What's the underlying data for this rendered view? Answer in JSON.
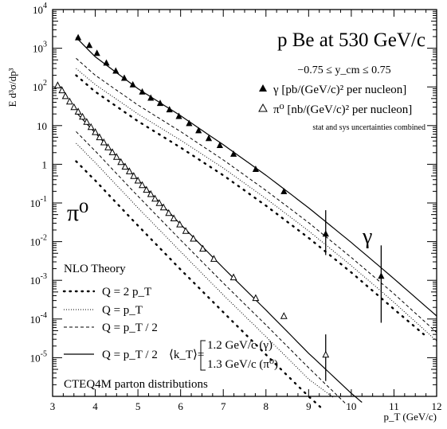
{
  "chart_data": {
    "type": "scatter",
    "title": "p Be at 530 GeV/c",
    "ylabel": "E d³σ/dp³",
    "xlabel": "p_T (GeV/c)",
    "y_scale": "log",
    "xlim": [
      3,
      12
    ],
    "ylim": [
      1e-06,
      10000.0
    ],
    "x_ticks": [
      "3",
      "4",
      "5",
      "6",
      "7",
      "8",
      "9",
      "10",
      "11",
      "12"
    ],
    "y_ticks": [
      "10^4",
      "10^3",
      "10^2",
      "10",
      "1",
      "10^-1",
      "10^-2",
      "10^-3",
      "10^-4",
      "10^-5"
    ],
    "annotations": {
      "rapidity": "−0.75 ≤ y_cm ≤ 0.75",
      "gamma_legend": "γ  [pb/(GeV/c)² per nucleon]",
      "pi0_legend": "π⁰ [nb/(GeV/c)² per nucleon]",
      "uncertainties": "stat and sys uncertainties combined",
      "pi0_label": "π⁰",
      "gamma_label": "γ"
    },
    "theory_legend": {
      "header": "NLO Theory",
      "q2pt": "Q = 2 p_T",
      "qpt": "Q = p_T",
      "qhalf": "Q = p_T / 2",
      "qhalf_kt": "Q = p_T / 2",
      "kt_label": "⟨k_T⟩=",
      "kt_gamma": "1.2 GeV/c (γ)",
      "kt_pi0": "1.3 GeV/c (π⁰)",
      "pdf": "CTEQ4M parton distributions"
    },
    "series": [
      {
        "name": "γ",
        "marker": "filled-triangle",
        "points": [
          [
            3.6,
            1900
          ],
          [
            3.86,
            1200
          ],
          [
            4.04,
            750
          ],
          [
            4.26,
            420
          ],
          [
            4.48,
            260
          ],
          [
            4.68,
            170
          ],
          [
            4.88,
            115
          ],
          [
            5.1,
            75
          ],
          [
            5.3,
            52
          ],
          [
            5.52,
            38
          ],
          [
            5.74,
            26
          ],
          [
            5.96,
            17.5
          ],
          [
            6.2,
            11.5
          ],
          [
            6.42,
            7.5
          ],
          [
            6.66,
            4.7
          ],
          [
            6.92,
            3.1
          ],
          [
            7.24,
            1.85
          ],
          [
            7.76,
            0.75
          ],
          [
            8.42,
            0.2
          ],
          [
            9.4,
            0.016
          ],
          [
            10.7,
            0.0013
          ]
        ]
      },
      {
        "name": "π⁰",
        "marker": "open-triangle",
        "points": [
          [
            3.12,
            110
          ],
          [
            3.22,
            82
          ],
          [
            3.3,
            58
          ],
          [
            3.4,
            42
          ],
          [
            3.5,
            30
          ],
          [
            3.6,
            23
          ],
          [
            3.7,
            17
          ],
          [
            3.8,
            12.5
          ],
          [
            3.9,
            9.2
          ],
          [
            4.0,
            6.8
          ],
          [
            4.1,
            5.0
          ],
          [
            4.2,
            3.7
          ],
          [
            4.3,
            2.75
          ],
          [
            4.4,
            2.05
          ],
          [
            4.5,
            1.55
          ],
          [
            4.6,
            1.15
          ],
          [
            4.7,
            0.87
          ],
          [
            4.8,
            0.66
          ],
          [
            4.9,
            0.5
          ],
          [
            5.0,
            0.38
          ],
          [
            5.1,
            0.29
          ],
          [
            5.2,
            0.22
          ],
          [
            5.3,
            0.17
          ],
          [
            5.4,
            0.13
          ],
          [
            5.5,
            0.1
          ],
          [
            5.6,
            0.077
          ],
          [
            5.72,
            0.055
          ],
          [
            5.84,
            0.04
          ],
          [
            5.98,
            0.028
          ],
          [
            6.12,
            0.019
          ],
          [
            6.3,
            0.012
          ],
          [
            6.52,
            0.0066
          ],
          [
            6.78,
            0.0036
          ],
          [
            7.24,
            0.0012
          ],
          [
            7.76,
            0.00035
          ],
          [
            8.42,
            0.00012
          ],
          [
            9.4,
            1.2e-05
          ]
        ]
      }
    ],
    "curves": [
      {
        "name": "γ Q = p_T / 2 ⟨k_T⟩",
        "style": "solid",
        "x": [
          3.55,
          4,
          5,
          6,
          7,
          8,
          9,
          10,
          11,
          12
        ],
        "y": [
          1900,
          600,
          90,
          18,
          3.2,
          0.52,
          0.075,
          0.0095,
          0.0011,
          0.00012
        ]
      },
      {
        "name": "γ Q = p_T / 2",
        "style": "dashed",
        "x": [
          3.55,
          4,
          5,
          6,
          7,
          8,
          9,
          10,
          11,
          12
        ],
        "y": [
          550,
          200,
          34,
          7,
          1.3,
          0.21,
          0.031,
          0.0039,
          0.00045,
          4.5e-05
        ]
      },
      {
        "name": "γ Q = p_T",
        "style": "dotted-fine",
        "x": [
          3.55,
          4,
          5,
          6,
          7,
          8,
          9,
          10,
          11,
          12
        ],
        "y": [
          300,
          115,
          20,
          4.2,
          0.8,
          0.13,
          0.019,
          0.0024,
          0.00027,
          2.7e-05
        ]
      },
      {
        "name": "γ Q = 2 p_T",
        "style": "dotted",
        "x": [
          3.55,
          4,
          5,
          6,
          7,
          8,
          9,
          10,
          11,
          11.7
        ],
        "y": [
          200,
          75,
          13,
          2.7,
          0.52,
          0.085,
          0.0125,
          0.0016,
          0.00018,
          4e-05
        ]
      },
      {
        "name": "π⁰ Q = p_T / 2 ⟨k_T⟩",
        "style": "solid",
        "x": [
          3.55,
          4,
          5,
          6,
          7,
          8,
          9,
          10,
          10.25
        ],
        "y": [
          22,
          6.5,
          0.4,
          0.028,
          0.0021,
          0.00017,
          1.3e-05,
          1.2e-06,
          7e-07
        ]
      },
      {
        "name": "π⁰ Q = p_T / 2",
        "style": "dashed",
        "x": [
          3.55,
          4,
          5,
          6,
          7,
          8,
          9,
          9.9
        ],
        "y": [
          7,
          2.2,
          0.15,
          0.011,
          0.00085,
          7e-05,
          5.5e-06,
          6e-07
        ]
      },
      {
        "name": "π⁰ Q = p_T",
        "style": "dotted-fine",
        "x": [
          3.55,
          4,
          5,
          6,
          7,
          8,
          9,
          9.6
        ],
        "y": [
          3.5,
          1.1,
          0.075,
          0.0055,
          0.00042,
          3.5e-05,
          2.8e-06,
          9e-07
        ]
      },
      {
        "name": "π⁰ Q = 2 p_T",
        "style": "dotted",
        "x": [
          3.55,
          4,
          5,
          6,
          7,
          8,
          9,
          9.3
        ],
        "y": [
          1.2,
          0.38,
          0.026,
          0.0019,
          0.00015,
          1.2e-05,
          1e-06,
          5e-07
        ]
      }
    ],
    "error_bars": [
      {
        "x": 9.4,
        "low": 0.0045,
        "high": 0.065
      },
      {
        "x": 10.7,
        "low": 8e-05,
        "high": 0.008
      },
      {
        "x": 9.4,
        "low": 2.5e-06,
        "high": 4e-05
      }
    ]
  }
}
